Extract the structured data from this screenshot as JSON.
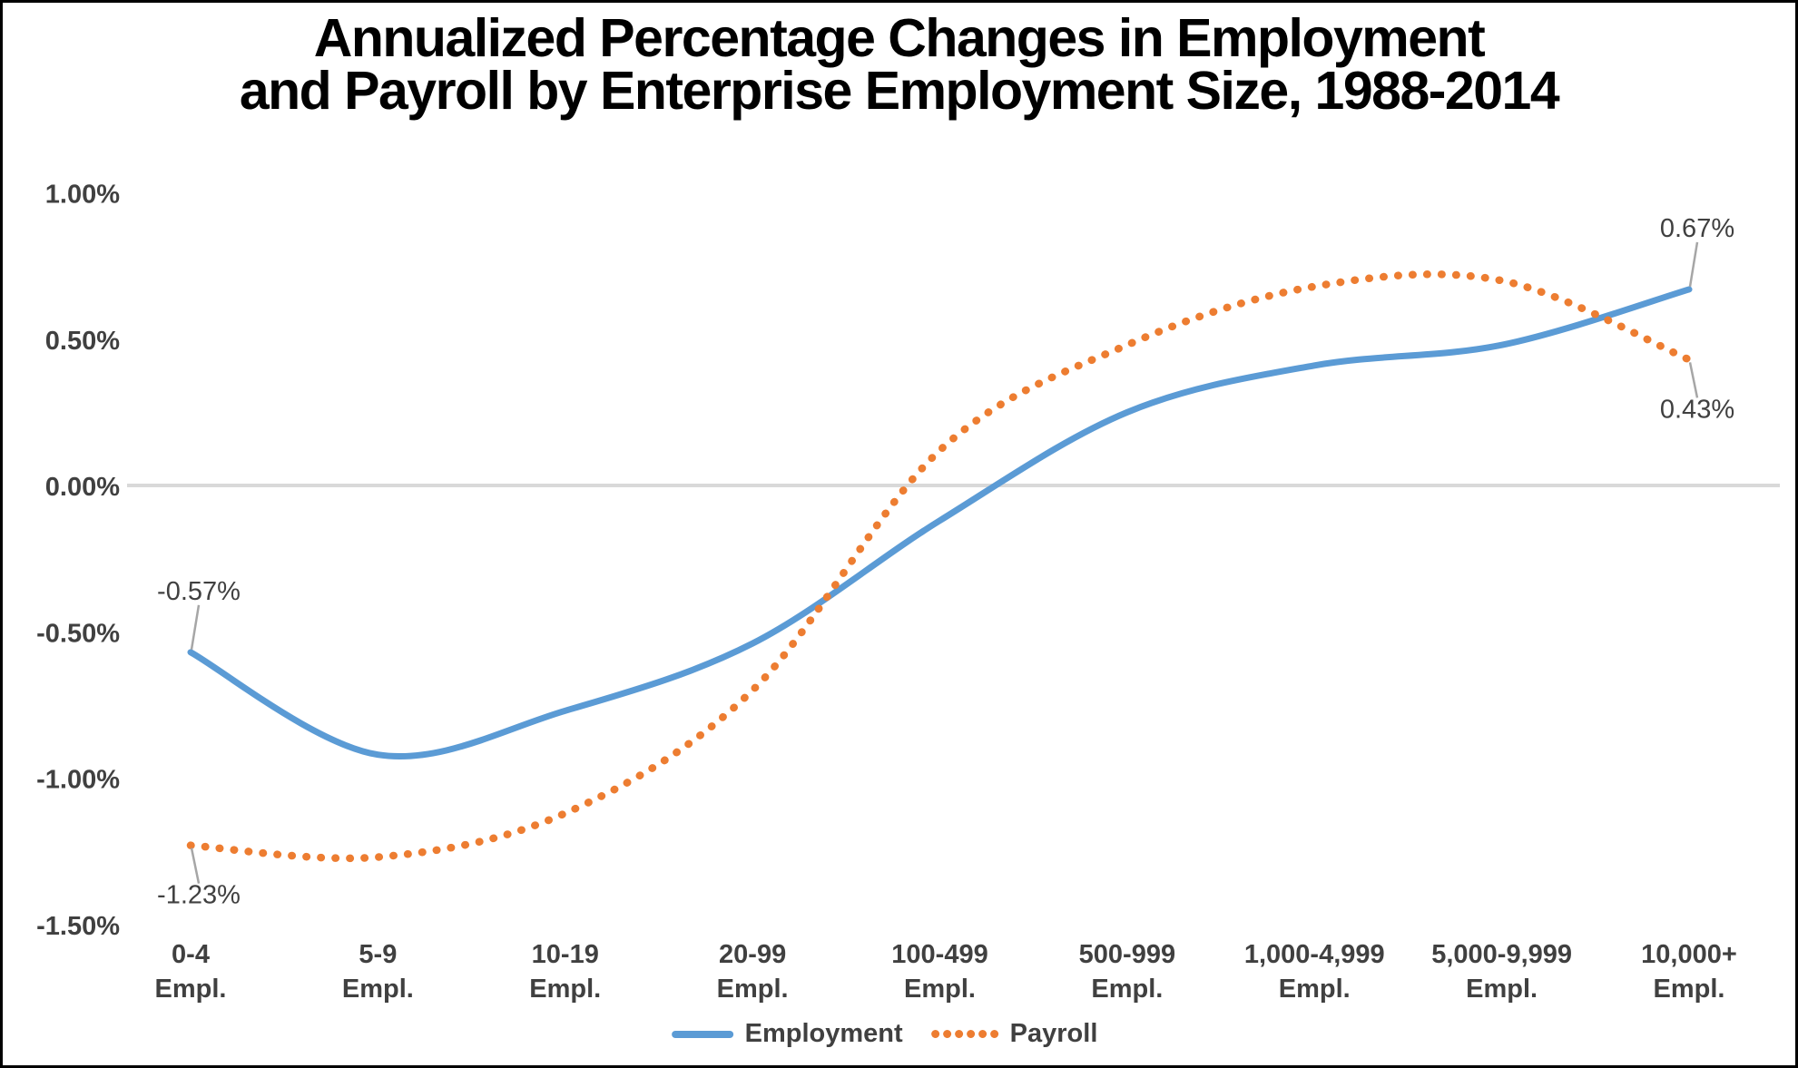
{
  "title": {
    "line1": "Annualized Percentage Changes in Employment",
    "line2": "and Payroll by Enterprise Employment Size, 1988-2014"
  },
  "legend": {
    "employment_label": "Employment",
    "payroll_label": "Payroll"
  },
  "colors": {
    "employment": "#5B9BD5",
    "payroll": "#ED7D31",
    "grid": "#D9D9D9",
    "leader": "#A6A6A6",
    "axis_text": "#404040",
    "title_text": "#000000"
  },
  "chart_data": {
    "type": "line",
    "title": "Annualized Percentage Changes in Employment and Payroll by Enterprise Employment Size, 1988-2014",
    "categories": [
      "0-4",
      "5-9",
      "10-19",
      "20-99",
      "100-499",
      "500-999",
      "1,000-4,999",
      "5,000-9,999",
      "10,000+"
    ],
    "category_suffix": "Empl.",
    "xlabel": "",
    "ylabel": "",
    "yticks": [
      "1.00%",
      "0.50%",
      "0.00%",
      "-0.50%",
      "-1.00%",
      "-1.50%"
    ],
    "ylim": [
      -1.5,
      1.0
    ],
    "grid": "zero-line-only",
    "legend_position": "bottom",
    "line_style_note": "Employment solid smoothed line, Payroll round-dotted smoothed line",
    "series": [
      {
        "name": "Employment",
        "style": "solid",
        "color": "#5B9BD5",
        "values": [
          -0.57,
          -0.92,
          -0.77,
          -0.54,
          -0.12,
          0.25,
          0.41,
          0.48,
          0.67
        ]
      },
      {
        "name": "Payroll",
        "style": "dotted",
        "color": "#ED7D31",
        "values": [
          -1.23,
          -1.27,
          -1.12,
          -0.7,
          0.12,
          0.48,
          0.68,
          0.7,
          0.43
        ]
      }
    ],
    "annotations": [
      {
        "text": "-0.57%",
        "series": 0,
        "point": 0,
        "position": "above"
      },
      {
        "text": "-1.23%",
        "series": 1,
        "point": 0,
        "position": "below"
      },
      {
        "text": "0.67%",
        "series": 0,
        "point": 8,
        "position": "above"
      },
      {
        "text": "0.43%",
        "series": 1,
        "point": 8,
        "position": "below"
      }
    ]
  }
}
